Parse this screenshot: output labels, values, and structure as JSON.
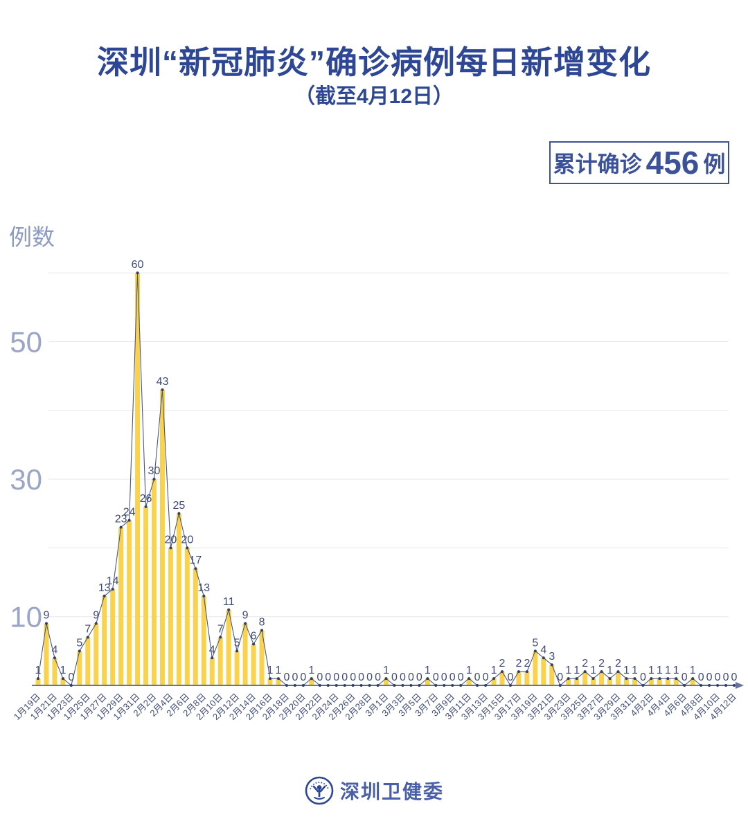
{
  "header": {
    "title": "深圳“新冠肺炎”确诊病例每日新增变化",
    "subtitle": "（截至4月12日）"
  },
  "badge": {
    "label": "累计确诊",
    "value": "456",
    "unit": "例"
  },
  "footer": {
    "org": "深圳卫健委"
  },
  "chart_data": {
    "type": "bar",
    "title": "深圳“新冠肺炎”确诊病例每日新增变化",
    "ylabel": "例数",
    "yticks": [
      10,
      30,
      50
    ],
    "ylim": [
      0,
      60
    ],
    "grid_step": 10,
    "tick_label_every": 2,
    "bar_color": "#fbd24b",
    "line_color": "#4a5780",
    "dot_color": "#2e3f6f",
    "value_label_color": "#3e4b77",
    "axis_color": "#68739c",
    "grid_color": "#e7e7ee",
    "ytick_color": "#9aa5c8",
    "x": [
      "1月19日",
      "1月20日",
      "1月21日",
      "1月22日",
      "1月23日",
      "1月24日",
      "1月25日",
      "1月26日",
      "1月27日",
      "1月28日",
      "1月29日",
      "1月30日",
      "1月31日",
      "2月1日",
      "2月2日",
      "2月3日",
      "2月4日",
      "2月5日",
      "2月6日",
      "2月7日",
      "2月8日",
      "2月9日",
      "2月10日",
      "2月11日",
      "2月12日",
      "2月13日",
      "2月14日",
      "2月15日",
      "2月16日",
      "2月17日",
      "2月18日",
      "2月19日",
      "2月20日",
      "2月21日",
      "2月22日",
      "2月23日",
      "2月24日",
      "2月25日",
      "2月26日",
      "2月27日",
      "2月28日",
      "2月29日",
      "3月1日",
      "3月2日",
      "3月3日",
      "3月4日",
      "3月5日",
      "3月6日",
      "3月7日",
      "3月8日",
      "3月9日",
      "3月10日",
      "3月11日",
      "3月12日",
      "3月13日",
      "3月14日",
      "3月15日",
      "3月16日",
      "3月17日",
      "3月18日",
      "3月19日",
      "3月20日",
      "3月21日",
      "3月22日",
      "3月23日",
      "3月24日",
      "3月25日",
      "3月26日",
      "3月27日",
      "3月28日",
      "3月29日",
      "3月30日",
      "3月31日",
      "4月1日",
      "4月2日",
      "4月3日",
      "4月4日",
      "4月5日",
      "4月6日",
      "4月7日",
      "4月8日",
      "4月9日",
      "4月10日",
      "4月11日",
      "4月12日"
    ],
    "values": [
      1,
      9,
      4,
      1,
      0,
      5,
      7,
      9,
      13,
      14,
      23,
      24,
      60,
      26,
      30,
      43,
      20,
      25,
      20,
      17,
      13,
      4,
      7,
      11,
      5,
      9,
      6,
      8,
      1,
      1,
      0,
      0,
      0,
      1,
      0,
      0,
      0,
      0,
      0,
      0,
      0,
      0,
      1,
      0,
      0,
      0,
      0,
      1,
      0,
      0,
      0,
      0,
      1,
      0,
      0,
      1,
      2,
      0,
      2,
      2,
      5,
      4,
      3,
      0,
      1,
      1,
      2,
      1,
      2,
      1,
      2,
      1,
      1,
      0,
      1,
      1,
      1,
      1,
      0,
      1,
      0,
      0,
      0,
      0,
      0
    ]
  }
}
